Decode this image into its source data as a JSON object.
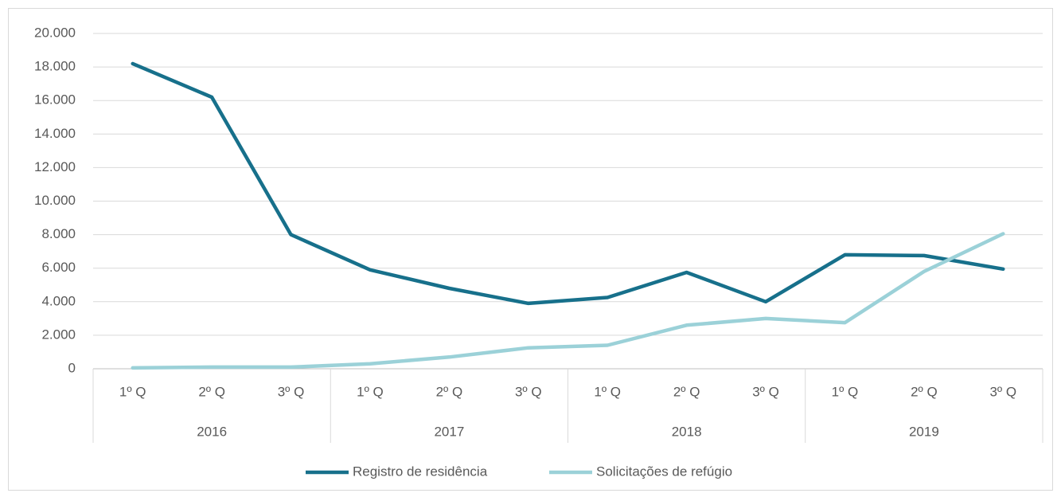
{
  "chart_data": {
    "type": "line",
    "categories": [
      "1º Q",
      "2º Q",
      "3º Q",
      "1º Q",
      "2º Q",
      "3º Q",
      "1º Q",
      "2º Q",
      "3º Q",
      "1º Q",
      "2º Q",
      "3º Q"
    ],
    "groups": [
      "2016",
      "2017",
      "2018",
      "2019"
    ],
    "series": [
      {
        "name": "Registro de residência",
        "color": "#17708b",
        "values": [
          18200,
          16200,
          8000,
          5900,
          4800,
          3900,
          4250,
          5750,
          4000,
          6800,
          6750,
          5950
        ]
      },
      {
        "name": "Solicitações de refúgio",
        "color": "#9bd1d8",
        "values": [
          50,
          100,
          100,
          300,
          700,
          1250,
          1400,
          2600,
          3000,
          2750,
          5800,
          8050
        ]
      }
    ],
    "ylim": [
      0,
      20000
    ],
    "yticks": [
      0,
      {
        "value": 2000,
        "label": "2.000"
      },
      {
        "value": 4000,
        "label": "4.000"
      },
      {
        "value": 6000,
        "label": "6.000"
      },
      {
        "value": 8000,
        "label": "8.000"
      },
      {
        "value": 10000,
        "label": "10.000"
      },
      {
        "value": 12000,
        "label": "12.000"
      },
      {
        "value": 14000,
        "label": "14.000"
      },
      {
        "value": 16000,
        "label": "16.000"
      },
      {
        "value": 18000,
        "label": "18.000"
      },
      {
        "value": 20000,
        "label": "20.000"
      }
    ],
    "grid": true,
    "legend": "bottom"
  }
}
